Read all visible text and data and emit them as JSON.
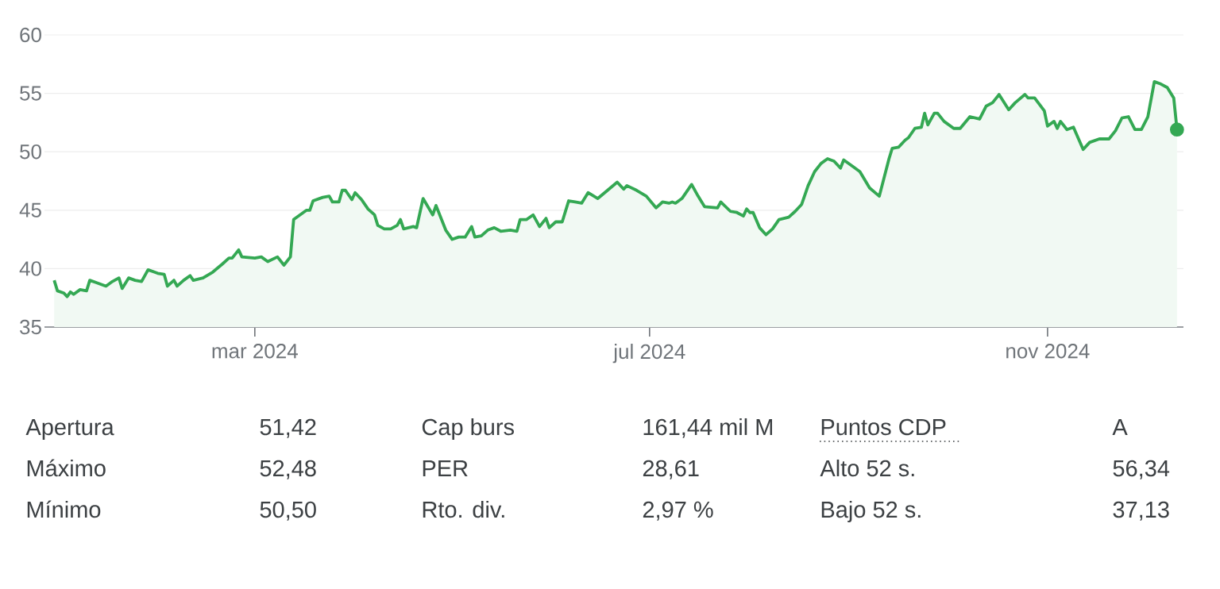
{
  "chart_data": {
    "type": "area",
    "color": "#34a853",
    "grid": "y",
    "xlim": [
      "2023-12-27",
      "2024-12-13"
    ],
    "xticks": [
      {
        "value": "2024-03-01",
        "label": "mar 2024"
      },
      {
        "value": "2024-07-01",
        "label": "jul 2024"
      },
      {
        "value": "2024-11-01",
        "label": "nov 2024"
      }
    ],
    "ylim": [
      35,
      60
    ],
    "yticks": [
      35,
      40,
      45,
      50,
      55,
      60
    ],
    "x": [
      "2023-12-30",
      "2023-12-31",
      "2024-01-02",
      "2024-01-03",
      "2024-01-04",
      "2024-01-05",
      "2024-01-07",
      "2024-01-09",
      "2024-01-10",
      "2024-01-12",
      "2024-01-15",
      "2024-01-17",
      "2024-01-19",
      "2024-01-20",
      "2024-01-22",
      "2024-01-24",
      "2024-01-26",
      "2024-01-28",
      "2024-01-30",
      "2024-01-31",
      "2024-02-02",
      "2024-02-03",
      "2024-02-05",
      "2024-02-06",
      "2024-02-08",
      "2024-02-10",
      "2024-02-11",
      "2024-02-14",
      "2024-02-17",
      "2024-02-20",
      "2024-02-22",
      "2024-02-23",
      "2024-02-25",
      "2024-02-26",
      "2024-03-01",
      "2024-03-03",
      "2024-03-05",
      "2024-03-08",
      "2024-03-10",
      "2024-03-12",
      "2024-03-13",
      "2024-03-15",
      "2024-03-17",
      "2024-03-18",
      "2024-03-19",
      "2024-03-22",
      "2024-03-24",
      "2024-03-25",
      "2024-03-27",
      "2024-03-28",
      "2024-03-29",
      "2024-03-31",
      "2024-04-01",
      "2024-04-03",
      "2024-04-05",
      "2024-04-07",
      "2024-04-08",
      "2024-04-10",
      "2024-04-12",
      "2024-04-14",
      "2024-04-15",
      "2024-04-16",
      "2024-04-19",
      "2024-04-20",
      "2024-04-22",
      "2024-04-25",
      "2024-04-26",
      "2024-04-29",
      "2024-05-01",
      "2024-05-03",
      "2024-05-05",
      "2024-05-07",
      "2024-05-08",
      "2024-05-10",
      "2024-05-12",
      "2024-05-14",
      "2024-05-16",
      "2024-05-19",
      "2024-05-21",
      "2024-05-22",
      "2024-05-24",
      "2024-05-26",
      "2024-05-28",
      "2024-05-30",
      "2024-05-31",
      "2024-06-02",
      "2024-06-04",
      "2024-06-06",
      "2024-06-08",
      "2024-06-10",
      "2024-06-12",
      "2024-06-15",
      "2024-06-18",
      "2024-06-21",
      "2024-06-23",
      "2024-06-24",
      "2024-06-27",
      "2024-06-30",
      "2024-07-03",
      "2024-07-05",
      "2024-07-07",
      "2024-07-08",
      "2024-07-09",
      "2024-07-11",
      "2024-07-14",
      "2024-07-16",
      "2024-07-18",
      "2024-07-22",
      "2024-07-23",
      "2024-07-26",
      "2024-07-28",
      "2024-07-30",
      "2024-07-31",
      "2024-08-01",
      "2024-08-02",
      "2024-08-04",
      "2024-08-06",
      "2024-08-08",
      "2024-08-10",
      "2024-08-13",
      "2024-08-15",
      "2024-08-17",
      "2024-08-19",
      "2024-08-21",
      "2024-08-23",
      "2024-08-25",
      "2024-08-27",
      "2024-08-29",
      "2024-08-30",
      "2024-09-02",
      "2024-09-04",
      "2024-09-07",
      "2024-09-10",
      "2024-09-13",
      "2024-09-14",
      "2024-09-16",
      "2024-09-18",
      "2024-09-19",
      "2024-09-21",
      "2024-09-23",
      "2024-09-24",
      "2024-09-25",
      "2024-09-27",
      "2024-09-28",
      "2024-09-30",
      "2024-10-03",
      "2024-10-05",
      "2024-10-08",
      "2024-10-11",
      "2024-10-13",
      "2024-10-15",
      "2024-10-17",
      "2024-10-20",
      "2024-10-22",
      "2024-10-25",
      "2024-10-26",
      "2024-10-28",
      "2024-10-31",
      "2024-11-01",
      "2024-11-03",
      "2024-11-04",
      "2024-11-05",
      "2024-11-07",
      "2024-11-09",
      "2024-11-12",
      "2024-11-14",
      "2024-11-17",
      "2024-11-20",
      "2024-11-22",
      "2024-11-24",
      "2024-11-26",
      "2024-11-28",
      "2024-11-30",
      "2024-12-02",
      "2024-12-04",
      "2024-12-06",
      "2024-12-08",
      "2024-12-10",
      "2024-12-11"
    ],
    "values": [
      39.0,
      38.1,
      37.9,
      37.6,
      38.0,
      37.8,
      38.2,
      38.1,
      39.0,
      38.8,
      38.5,
      38.9,
      39.2,
      38.3,
      39.2,
      39.0,
      38.9,
      39.9,
      39.7,
      39.6,
      39.5,
      38.5,
      39.0,
      38.5,
      39.0,
      39.4,
      39.0,
      39.2,
      39.7,
      40.4,
      40.9,
      40.9,
      41.6,
      41.0,
      40.9,
      41.0,
      40.6,
      41.0,
      40.3,
      41.0,
      44.2,
      44.6,
      45.0,
      45.0,
      45.8,
      46.1,
      46.2,
      45.7,
      45.7,
      46.7,
      46.7,
      45.9,
      46.5,
      45.9,
      45.1,
      44.6,
      43.7,
      43.4,
      43.4,
      43.7,
      44.2,
      43.4,
      43.6,
      43.5,
      46.0,
      44.6,
      45.4,
      43.3,
      42.5,
      42.7,
      42.7,
      43.6,
      42.7,
      42.8,
      43.3,
      43.5,
      43.2,
      43.3,
      43.2,
      44.2,
      44.2,
      44.6,
      43.6,
      44.3,
      43.5,
      44.0,
      44.0,
      45.8,
      45.7,
      45.6,
      46.5,
      46.0,
      46.7,
      47.4,
      46.8,
      47.1,
      46.7,
      46.2,
      45.2,
      45.7,
      45.6,
      45.7,
      45.6,
      46.0,
      47.2,
      46.2,
      45.3,
      45.2,
      45.7,
      44.9,
      44.8,
      44.5,
      45.1,
      44.8,
      44.8,
      43.5,
      42.9,
      43.4,
      44.2,
      44.4,
      44.9,
      45.5,
      47.1,
      48.3,
      49.0,
      49.4,
      49.2,
      48.6,
      49.3,
      48.7,
      48.3,
      46.9,
      46.2,
      49.4,
      50.3,
      50.4,
      51.0,
      51.2,
      52.0,
      52.1,
      53.3,
      52.3,
      53.3,
      53.3,
      52.6,
      52.0,
      52.0,
      53.0,
      52.8,
      53.9,
      54.2,
      54.9,
      53.6,
      54.2,
      54.9,
      54.6,
      54.6,
      53.5,
      52.2,
      52.6,
      52.0,
      52.6,
      51.9,
      52.1,
      50.2,
      50.8,
      51.1,
      51.1,
      51.8,
      52.9,
      53.0,
      51.9,
      51.9,
      53.0,
      56.0,
      55.8,
      55.5,
      54.6,
      51.9
    ],
    "annotations": [
      "Apertura",
      "51,42",
      "Cap burs",
      "161,44 mil M",
      "Puntos CDP",
      "A",
      "Máximo",
      "52,48",
      "PER",
      "28,61",
      "Alto 52 s.",
      "56,34",
      "Mínimo",
      "50,50",
      "Rto. div.",
      "2,97 %",
      "Bajo 52 s.",
      "37,13"
    ]
  }
}
